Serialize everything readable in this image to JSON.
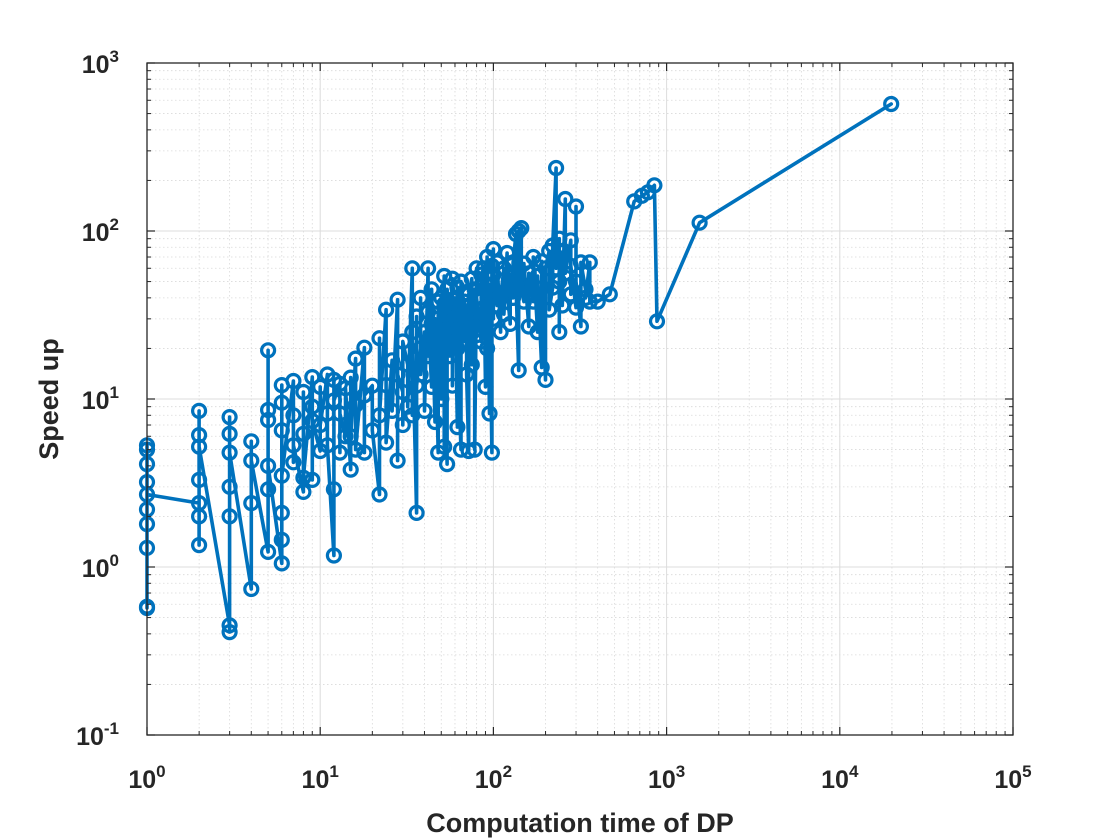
{
  "chart_data": {
    "type": "line",
    "title": "",
    "xlabel": "Computation time of DP",
    "ylabel": "Speed up",
    "xscale": "log",
    "yscale": "log",
    "xlim": [
      1,
      100000
    ],
    "ylim": [
      0.1,
      1000
    ],
    "grid": true,
    "minor_grid": true,
    "legend": "none",
    "marker": "circle",
    "color": "#0072BD",
    "x_ticks": [
      {
        "base": "10",
        "exp": "0"
      },
      {
        "base": "10",
        "exp": "1"
      },
      {
        "base": "10",
        "exp": "2"
      },
      {
        "base": "10",
        "exp": "3"
      },
      {
        "base": "10",
        "exp": "4"
      },
      {
        "base": "10",
        "exp": "5"
      }
    ],
    "y_ticks": [
      {
        "base": "10",
        "exp": "-1"
      },
      {
        "base": "10",
        "exp": "0"
      },
      {
        "base": "10",
        "exp": "1"
      },
      {
        "base": "10",
        "exp": "2"
      },
      {
        "base": "10",
        "exp": "3"
      }
    ],
    "series": [
      {
        "name": "Speed up",
        "points": [
          [
            1,
            0.57
          ],
          [
            1,
            5.3
          ],
          [
            1,
            1.3
          ],
          [
            1,
            4.1
          ],
          [
            1,
            2.2
          ],
          [
            1,
            0.58
          ],
          [
            1,
            3.2
          ],
          [
            1,
            1.8
          ],
          [
            1,
            5.0
          ],
          [
            1,
            2.7
          ],
          [
            2,
            2.4
          ],
          [
            2,
            8.5
          ],
          [
            2,
            1.35
          ],
          [
            2,
            6.1
          ],
          [
            2,
            3.3
          ],
          [
            2,
            2.0
          ],
          [
            2,
            5.2
          ],
          [
            3,
            0.45
          ],
          [
            3,
            7.8
          ],
          [
            3,
            2.0
          ],
          [
            3,
            0.41
          ],
          [
            3,
            6.2
          ],
          [
            3,
            3.0
          ],
          [
            3,
            4.8
          ],
          [
            4,
            0.74
          ],
          [
            4,
            5.6
          ],
          [
            4,
            2.4
          ],
          [
            4,
            4.3
          ],
          [
            5,
            1.23
          ],
          [
            5,
            19.5
          ],
          [
            5,
            7.5
          ],
          [
            5,
            2.9
          ],
          [
            5,
            8.6
          ],
          [
            5,
            4.0
          ],
          [
            6,
            1.05
          ],
          [
            6,
            12.1
          ],
          [
            6,
            2.1
          ],
          [
            6,
            9.5
          ],
          [
            6,
            1.45
          ],
          [
            6,
            6.5
          ],
          [
            6,
            3.5
          ],
          [
            7,
            12.8
          ],
          [
            7,
            4.2
          ],
          [
            7,
            8.0
          ],
          [
            7,
            5.3
          ],
          [
            8,
            2.8
          ],
          [
            8,
            11.0
          ],
          [
            8,
            6.2
          ],
          [
            8,
            3.4
          ],
          [
            9,
            13.5
          ],
          [
            9,
            9.0
          ],
          [
            9,
            3.3
          ],
          [
            9,
            7.4
          ],
          [
            10,
            4.9
          ],
          [
            10,
            11.8
          ],
          [
            10,
            7.0
          ],
          [
            11,
            14.0
          ],
          [
            11,
            8.2
          ],
          [
            11,
            5.3
          ],
          [
            12,
            1.17
          ],
          [
            12,
            13.0
          ],
          [
            12,
            2.9
          ],
          [
            12,
            9.8
          ],
          [
            13,
            12.3
          ],
          [
            13,
            4.8
          ],
          [
            13,
            8.2
          ],
          [
            14,
            6.0
          ],
          [
            14,
            11.6
          ],
          [
            15,
            3.8
          ],
          [
            15,
            13.4
          ],
          [
            15,
            6.0
          ],
          [
            16,
            17.4
          ],
          [
            16,
            9.2
          ],
          [
            16,
            5.0
          ],
          [
            18,
            20.2
          ],
          [
            18,
            4.8
          ],
          [
            18,
            10.5
          ],
          [
            20,
            12.0
          ],
          [
            20,
            6.5
          ],
          [
            22,
            2.7
          ],
          [
            22,
            23.0
          ],
          [
            22,
            8.0
          ],
          [
            24,
            34.0
          ],
          [
            24,
            12.1
          ],
          [
            24,
            5.5
          ],
          [
            26,
            17.0
          ],
          [
            26,
            8.5
          ],
          [
            28,
            39.0
          ],
          [
            28,
            4.3
          ],
          [
            28,
            14.0
          ],
          [
            30,
            11.0
          ],
          [
            30,
            7.0
          ],
          [
            30,
            22.0
          ],
          [
            32,
            16.0
          ],
          [
            32,
            9.0
          ],
          [
            34,
            60.0
          ],
          [
            34,
            8.0
          ],
          [
            34,
            25.0
          ],
          [
            36,
            2.1
          ],
          [
            36,
            31.0
          ],
          [
            36,
            12.0
          ],
          [
            38,
            20.0
          ],
          [
            38,
            40.0
          ],
          [
            38,
            14.0
          ],
          [
            40,
            25.0
          ],
          [
            40,
            8.5
          ],
          [
            42,
            60.0
          ],
          [
            42,
            18.0
          ],
          [
            42,
            33.0
          ],
          [
            44,
            11.8
          ],
          [
            44,
            28.0
          ],
          [
            44,
            45.0
          ],
          [
            46,
            7.3
          ],
          [
            46,
            22.0
          ],
          [
            46,
            30.0
          ],
          [
            48,
            4.8
          ],
          [
            48,
            16.0
          ],
          [
            48,
            38.0
          ],
          [
            50,
            40.0
          ],
          [
            50,
            25.0
          ],
          [
            50,
            10.0
          ],
          [
            52,
            54.0
          ],
          [
            52,
            5.2
          ],
          [
            52,
            35.0
          ],
          [
            54,
            4.1
          ],
          [
            54,
            22.0
          ],
          [
            54,
            45.0
          ],
          [
            56,
            30.0
          ],
          [
            56,
            18.0
          ],
          [
            58,
            52.0
          ],
          [
            58,
            12.0
          ],
          [
            58,
            35.0
          ],
          [
            60,
            27.0
          ],
          [
            60,
            40.0
          ],
          [
            62,
            6.8
          ],
          [
            62,
            46.0
          ],
          [
            62,
            20.0
          ],
          [
            65,
            5.0
          ],
          [
            65,
            30.0
          ],
          [
            65,
            50.0
          ],
          [
            68,
            22.0
          ],
          [
            68,
            38.0
          ],
          [
            70,
            33.0
          ],
          [
            70,
            14.0
          ],
          [
            72,
            4.9
          ],
          [
            72,
            36.0
          ],
          [
            72,
            42.0
          ],
          [
            75,
            52.0
          ],
          [
            75,
            16.0
          ],
          [
            75,
            28.0
          ],
          [
            78,
            45.0
          ],
          [
            78,
            5.0
          ],
          [
            80,
            60.0
          ],
          [
            80,
            24.0
          ],
          [
            80,
            40.0
          ],
          [
            85,
            22.0
          ],
          [
            85,
            55.0
          ],
          [
            88,
            35.0
          ],
          [
            88,
            60.0
          ],
          [
            90,
            11.8
          ],
          [
            90,
            45.0
          ],
          [
            92,
            20.0
          ],
          [
            92,
            70.0
          ],
          [
            95,
            8.2
          ],
          [
            95,
            48.0
          ],
          [
            98,
            4.8
          ],
          [
            98,
            62.0
          ],
          [
            100,
            78.0
          ],
          [
            100,
            30.0
          ],
          [
            100,
            55.0
          ],
          [
            105,
            36.0
          ],
          [
            105,
            65.0
          ],
          [
            110,
            25.0
          ],
          [
            110,
            40.0
          ],
          [
            115,
            60.0
          ],
          [
            115,
            32.0
          ],
          [
            120,
            74.0
          ],
          [
            120,
            45.0
          ],
          [
            125,
            28.0
          ],
          [
            125,
            55.0
          ],
          [
            130,
            40.0
          ],
          [
            130,
            65.0
          ],
          [
            135,
            96.0
          ],
          [
            135,
            48.0
          ],
          [
            140,
            14.8
          ],
          [
            140,
            100.0
          ],
          [
            140,
            58.0
          ],
          [
            145,
            104.0
          ],
          [
            145,
            45.0
          ],
          [
            150,
            38.0
          ],
          [
            150,
            64.0
          ],
          [
            160,
            27.0
          ],
          [
            160,
            56.0
          ],
          [
            170,
            38.0
          ],
          [
            170,
            70.0
          ],
          [
            180,
            25.0
          ],
          [
            180,
            54.0
          ],
          [
            190,
            15.4
          ],
          [
            190,
            66.0
          ],
          [
            200,
            13.0
          ],
          [
            200,
            60.0
          ],
          [
            210,
            76.0
          ],
          [
            210,
            34.0
          ],
          [
            220,
            46.0
          ],
          [
            220,
            82.0
          ],
          [
            230,
            237.0
          ],
          [
            230,
            60.0
          ],
          [
            240,
            90.0
          ],
          [
            240,
            25.0
          ],
          [
            240,
            50.0
          ],
          [
            250,
            75.0
          ],
          [
            250,
            36.0
          ],
          [
            260,
            155.0
          ],
          [
            260,
            56.0
          ],
          [
            280,
            88.0
          ],
          [
            280,
            42.0
          ],
          [
            280,
            62.0
          ],
          [
            300,
            35.0
          ],
          [
            300,
            140.0
          ],
          [
            300,
            50.0
          ],
          [
            320,
            27.0
          ],
          [
            320,
            65.0
          ],
          [
            340,
            45.0
          ],
          [
            340,
            40.0
          ],
          [
            360,
            65.0
          ],
          [
            360,
            38.0
          ],
          [
            400,
            38.0
          ],
          [
            470,
            42.0
          ],
          [
            650,
            150.0
          ],
          [
            720,
            162.0
          ],
          [
            780,
            170.0
          ],
          [
            850,
            187.0
          ],
          [
            880,
            29.0
          ],
          [
            1550,
            112.0
          ],
          [
            19800,
            570.0
          ]
        ]
      }
    ]
  }
}
